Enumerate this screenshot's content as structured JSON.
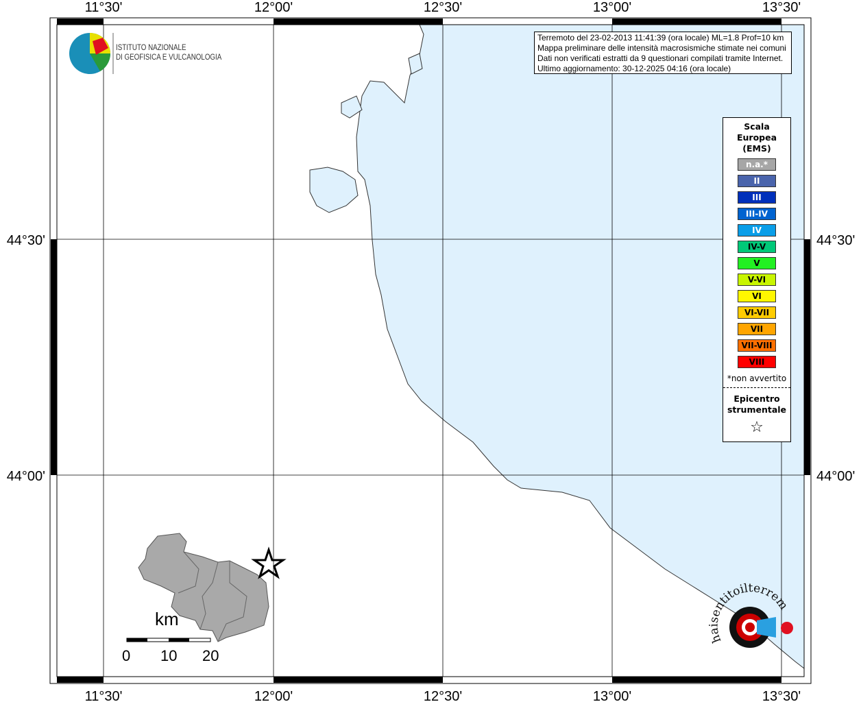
{
  "map": {
    "top_labels": [
      "11°30'",
      "12°00'",
      "12°30'",
      "13°00'",
      "13°30'"
    ],
    "bottom_labels": [
      "11°30'",
      "12°00'",
      "12°30'",
      "13°00'",
      "13°30'"
    ],
    "left_labels": [
      "44°30'",
      "44°00'"
    ],
    "right_labels": [
      "44°30'",
      "44°00'"
    ],
    "sea_color": "#dff1fd",
    "affected_area_color": "#a9a9a9"
  },
  "info": {
    "line1": "Terremoto del 23-02-2013 11:41:39 (ora locale) ML=1.8 Prof=10 km",
    "line2": "Mappa preliminare delle intensità macrosismiche stimate nei comuni",
    "line3": "Dati non verificati estratti da 9 questionari compilati tramite Internet.",
    "line4": "Ultimo aggiornamento: 30-12-2025 04:16 (ora locale)"
  },
  "logo": {
    "line1": "ISTITUTO NAZIONALE",
    "line2": "DI GEOFISICA E VULCANOLOGIA",
    "site": "www.haisentitoilterremoto.it"
  },
  "legend": {
    "title1": "Scala",
    "title2": "Europea",
    "title3": "(EMS)",
    "items": [
      {
        "label": "n.a.*",
        "color": "#a6a6a6",
        "text": "#ffffff"
      },
      {
        "label": "II",
        "color": "#4a64ac",
        "text": "#ffffff"
      },
      {
        "label": "III",
        "color": "#0030bb",
        "text": "#ffffff"
      },
      {
        "label": "III-IV",
        "color": "#0063d0",
        "text": "#ffffff"
      },
      {
        "label": "IV",
        "color": "#0a9ee8",
        "text": "#ffffff"
      },
      {
        "label": "IV-V",
        "color": "#00c878",
        "text": "#000000"
      },
      {
        "label": "V",
        "color": "#22f022",
        "text": "#000000"
      },
      {
        "label": "V-VI",
        "color": "#c8f500",
        "text": "#000000"
      },
      {
        "label": "VI",
        "color": "#fff700",
        "text": "#000000"
      },
      {
        "label": "VI-VII",
        "color": "#ffcc00",
        "text": "#000000"
      },
      {
        "label": "VII",
        "color": "#ffa500",
        "text": "#000000"
      },
      {
        "label": "VII-VIII",
        "color": "#ff7000",
        "text": "#000000"
      },
      {
        "label": "VIII",
        "color": "#ff0000",
        "text": "#000000"
      }
    ],
    "note": "*non avvertito",
    "epicenter1": "Epicentro",
    "epicenter2": "strumentale",
    "star": "☆"
  },
  "scale": {
    "unit": "km",
    "ticks": [
      "0",
      "10",
      "20"
    ]
  }
}
